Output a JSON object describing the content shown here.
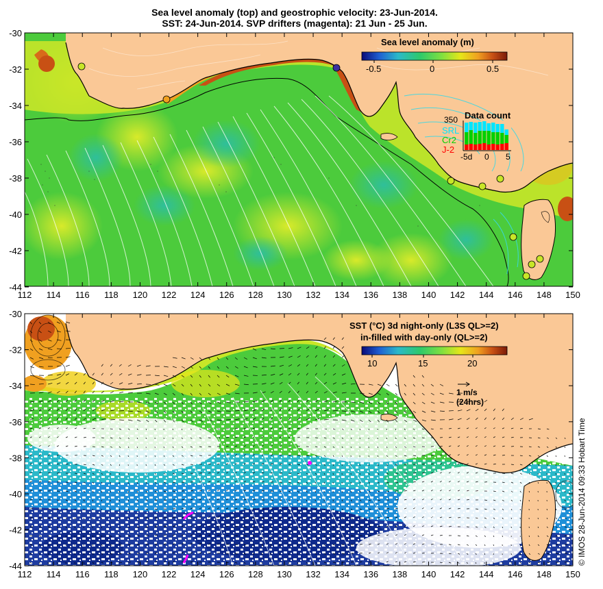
{
  "title_line1": "Sea level anomaly (top) and geostrophic velocity: 23-Jun-2014.",
  "title_line2": "SST: 24-Jun-2014. SVP drifters (magenta): 21 Jun - 25 Jun.",
  "x_ticks": [
    "112",
    "114",
    "116",
    "118",
    "120",
    "122",
    "124",
    "126",
    "128",
    "130",
    "132",
    "134",
    "136",
    "138",
    "140",
    "142",
    "144",
    "146",
    "148",
    "150"
  ],
  "y_ticks": [
    "-30",
    "-32",
    "-34",
    "-36",
    "-38",
    "-40",
    "-42",
    "-44"
  ],
  "top_panel": {
    "colorbar_title": "Sea level anomaly (m)",
    "colorbar_ticks": [
      "-0.5",
      "0",
      "0.5"
    ],
    "colorbar_colors": [
      "#0a0a78",
      "#1f5fd2",
      "#2bb9c9",
      "#2ec96b",
      "#7fe040",
      "#e6e619",
      "#f0a020",
      "#c85014",
      "#7a1a08"
    ],
    "data_count": {
      "title": "Data count",
      "ymax_label": "350",
      "series": [
        "SRL",
        "Cr2",
        "J-2"
      ],
      "series_colors": [
        "#00e5ff",
        "#00d000",
        "#ff0000"
      ],
      "x_ticks": [
        "-5d",
        "0",
        "5"
      ]
    }
  },
  "bottom_panel": {
    "colorbar_title_line1": "SST (°C)  3d night-only (L3S QL>=2)",
    "colorbar_title_line2": "in-filled with day-only (QL>=2)",
    "colorbar_ticks": [
      "10",
      "15",
      "20"
    ],
    "colorbar_colors": [
      "#0a0a78",
      "#1f5fd2",
      "#2bb9c9",
      "#2ec96b",
      "#7fe040",
      "#e6e619",
      "#f0a020",
      "#c85014",
      "#7a1a08"
    ],
    "velocity_key_line1": "1 m/s",
    "velocity_key_line2": "(24hrs)"
  },
  "credit": "© IMOS 28-Jun-2014 09:33 Hobart Time",
  "colors": {
    "land": "#fac896",
    "ocean_green": "#4ccb3c",
    "ocean_yellow": "#c8e628",
    "anomaly_high": "#c85a14",
    "sst_cold": "#1e3ca0",
    "contour": "#ffffff",
    "drifter": "#ff00ff"
  }
}
